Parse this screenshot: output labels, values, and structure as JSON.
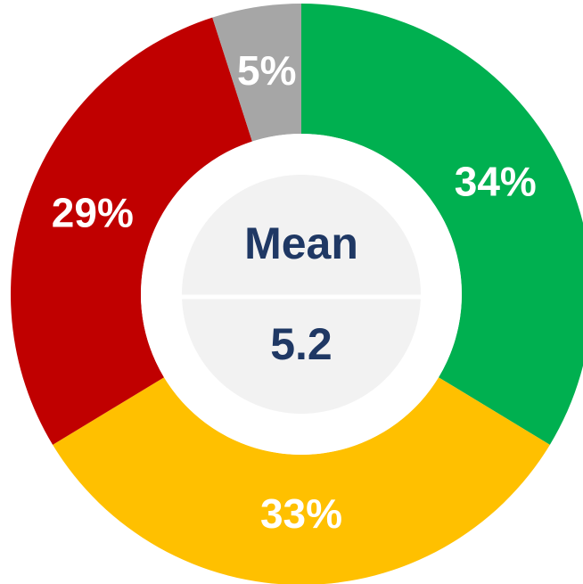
{
  "chart_data": {
    "type": "donut",
    "categories": [
      null,
      null,
      null,
      null
    ],
    "values": [
      34,
      33,
      29,
      5
    ],
    "value_labels": [
      "34%",
      "33%",
      "29%",
      "5%"
    ],
    "colors": [
      "#00b050",
      "#ffc000",
      "#c00000",
      "#a6a6a6"
    ],
    "center_title": "Mean",
    "center_value": "5.2"
  }
}
